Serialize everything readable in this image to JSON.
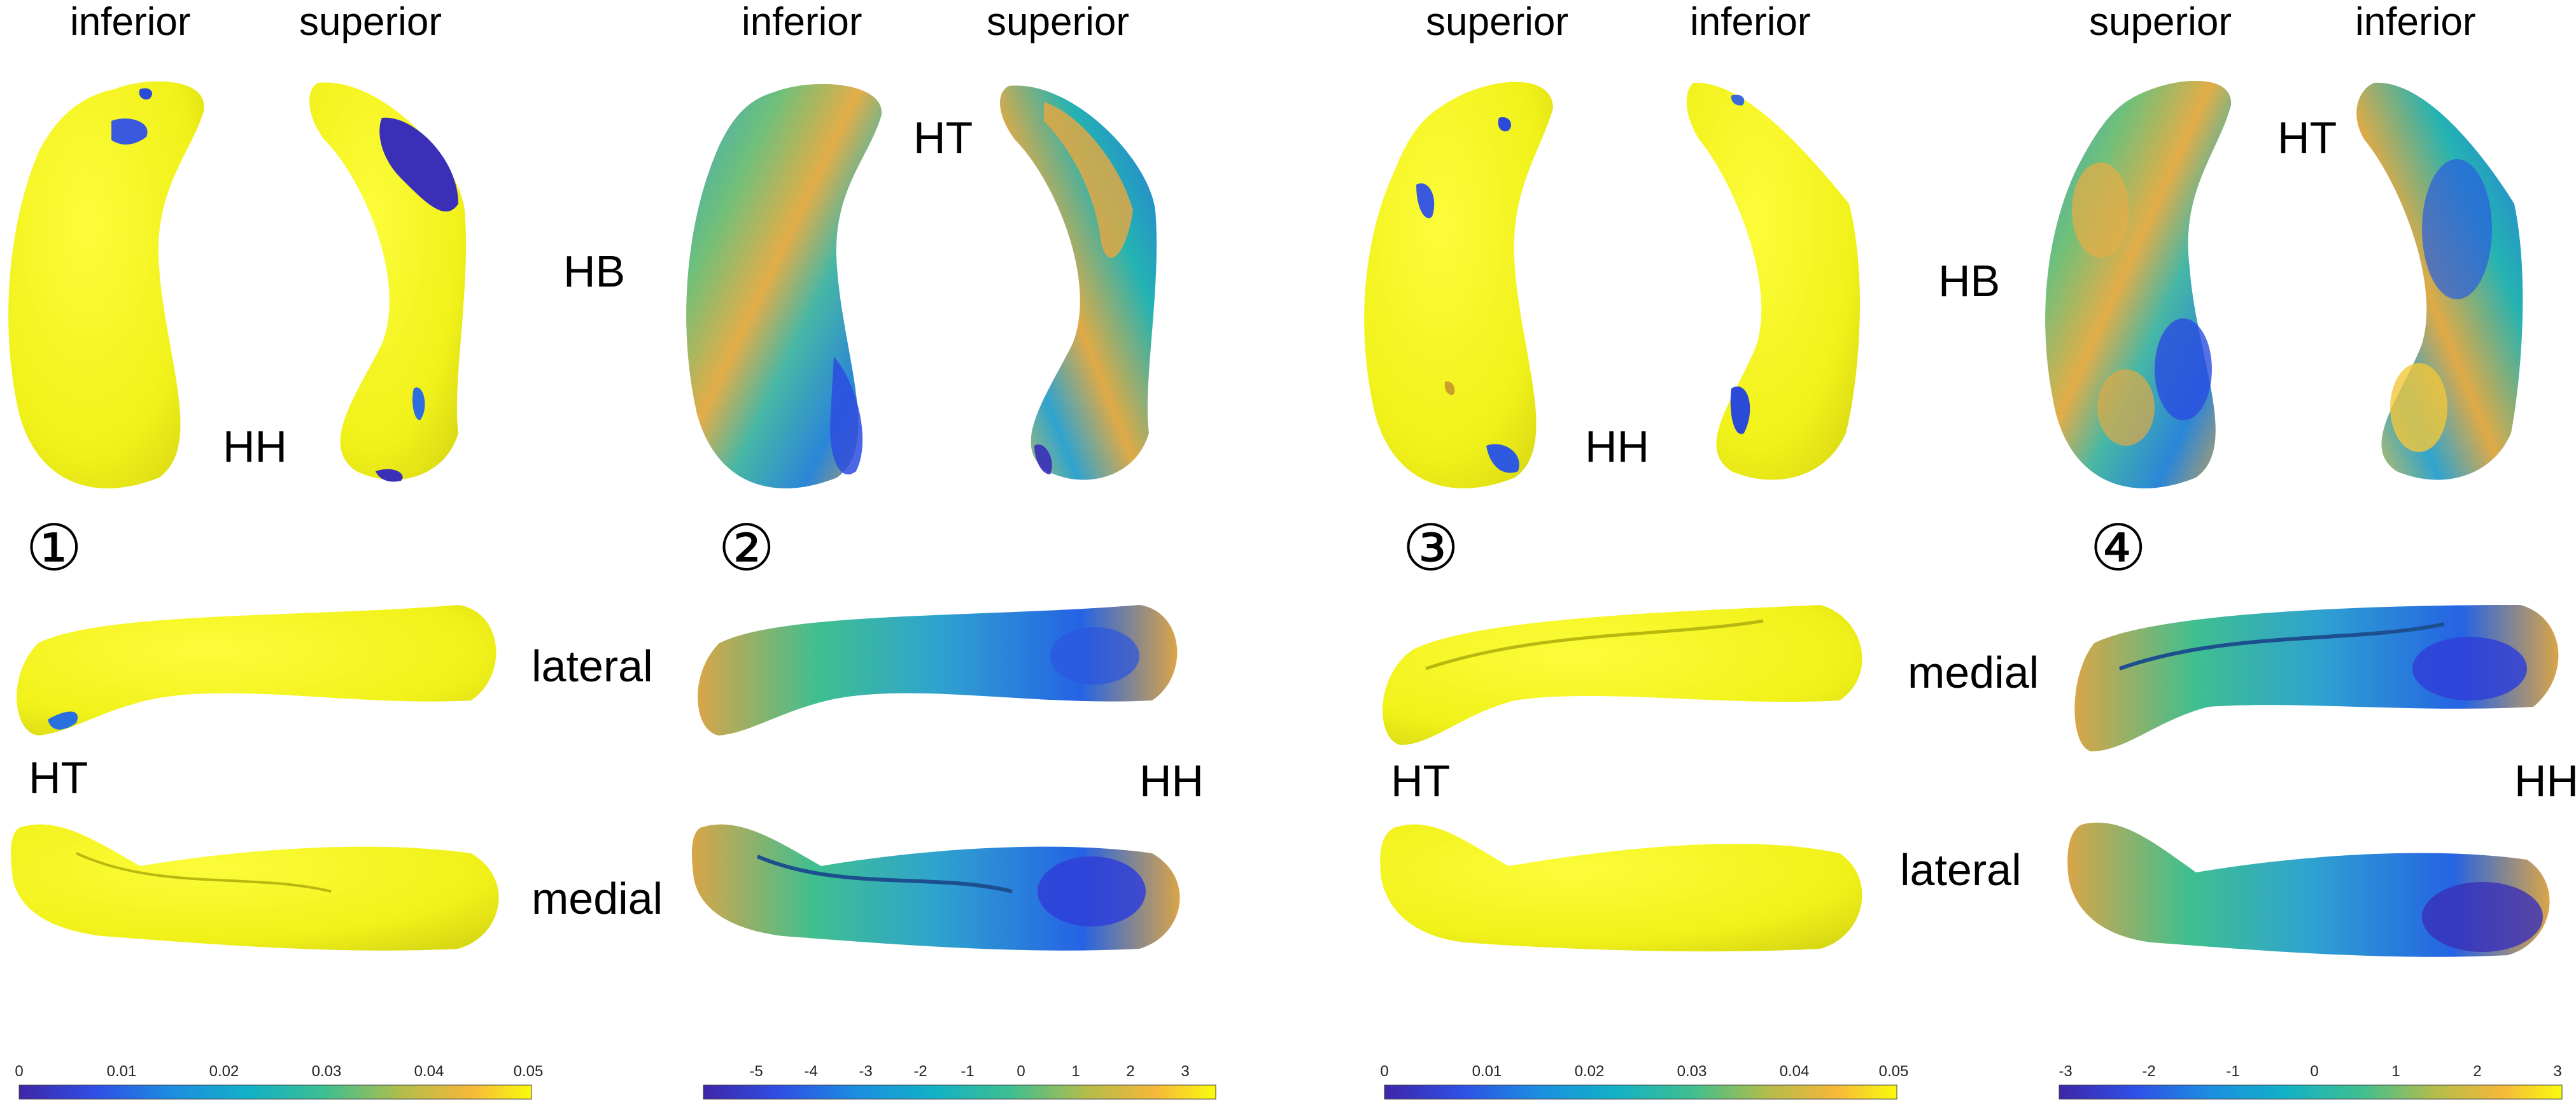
{
  "colors": {
    "parula_low": "#3e26a8",
    "parula_mid": "#2ab6a8",
    "parula_high": "#f9fb0e",
    "significance_yellow": "#f7f71c"
  },
  "panels": [
    {
      "number": "①",
      "view_labels": [
        "inferior",
        "superior"
      ],
      "region_labels": [
        "HB",
        "HH",
        "HT"
      ],
      "side_labels": [
        "lateral",
        "medial"
      ],
      "colorbar": {
        "ticks": [
          "0",
          "0.01",
          "0.02",
          "0.03",
          "0.04",
          "0.05"
        ]
      }
    },
    {
      "number": "②",
      "view_labels": [
        "inferior",
        "superior"
      ],
      "region_labels": [
        "HT",
        "HH"
      ],
      "colorbar": {
        "ticks": [
          "-5",
          "-4",
          "-3",
          "-2",
          "-1",
          "0",
          "1",
          "2",
          "3"
        ]
      }
    },
    {
      "number": "③",
      "view_labels": [
        "superior",
        "inferior"
      ],
      "region_labels": [
        "HH",
        "HT"
      ],
      "side_labels": [
        "medial",
        "lateral"
      ],
      "colorbar": {
        "ticks": [
          "0",
          "0.01",
          "0.02",
          "0.03",
          "0.04",
          "0.05"
        ]
      }
    },
    {
      "number": "④",
      "view_labels": [
        "superior",
        "inferior"
      ],
      "region_labels": [
        "HB",
        "HT",
        "HH"
      ],
      "colorbar": {
        "ticks": [
          "-3",
          "-2",
          "-1",
          "0",
          "1",
          "2",
          "3"
        ]
      }
    }
  ]
}
